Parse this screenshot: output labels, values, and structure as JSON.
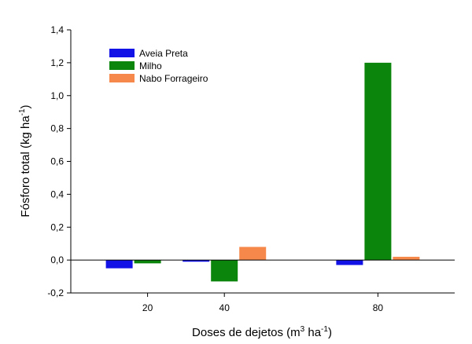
{
  "chart_data": {
    "type": "bar",
    "title": "",
    "xlabel": {
      "prefix": "Doses de dejetos (m",
      "sup1": "3",
      "middle": " ha",
      "sup2": "-1",
      "suffix": ")"
    },
    "ylabel": {
      "prefix": "Fósforo total (kg ha",
      "sup": "-1",
      "suffix": ")"
    },
    "x_axis_type": "linear",
    "xlim": [
      0,
      100
    ],
    "ylim": [
      -0.2,
      1.4
    ],
    "yticks": [
      -0.2,
      0.0,
      0.2,
      0.4,
      0.6,
      0.8,
      1.0,
      1.2,
      1.4
    ],
    "ytick_labels": [
      "-0,2",
      "0,0",
      "0,2",
      "0,4",
      "0,6",
      "0,8",
      "1,0",
      "1,2",
      "1,4"
    ],
    "categories": [
      20,
      40,
      80
    ],
    "xtick_labels": [
      "20",
      "40",
      "80"
    ],
    "legend_position": "top-left",
    "grid": false,
    "series": [
      {
        "name": "Aveia Preta",
        "color": "#1212e6",
        "values": [
          -0.05,
          -0.01,
          -0.03
        ]
      },
      {
        "name": "Milho",
        "color": "#0b850b",
        "values": [
          -0.02,
          -0.13,
          1.2
        ]
      },
      {
        "name": "Nabo Forrageiro",
        "color": "#f5884a",
        "values": [
          0.0,
          0.08,
          0.02
        ]
      }
    ]
  }
}
